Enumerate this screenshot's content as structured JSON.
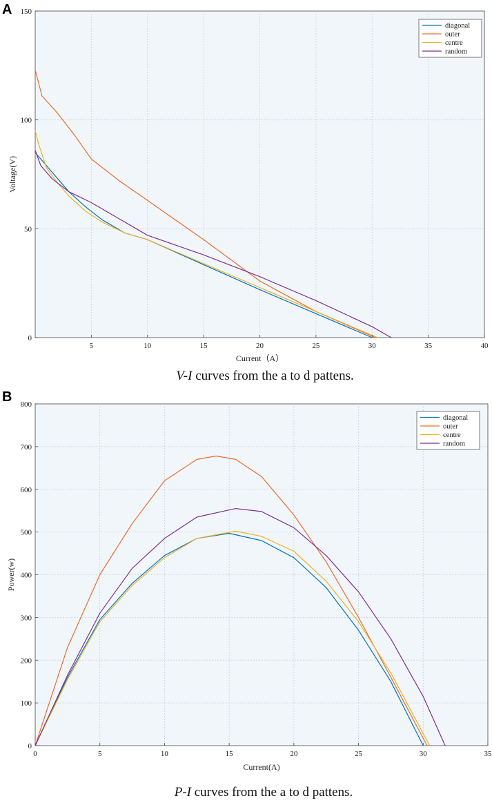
{
  "colors": {
    "diagonal": "#0072BD",
    "outer": "#EE6A2C",
    "centre": "#EDB120",
    "random": "#7E2F8E"
  },
  "chart_data": [
    {
      "panel": "A",
      "type": "line",
      "title": "",
      "xlabel": "Current（A）",
      "ylabel": "Voltage(V)",
      "xlim": [
        0,
        40
      ],
      "ylim": [
        0,
        150
      ],
      "xticks": [
        "5",
        "10",
        "15",
        "20",
        "25",
        "30",
        "35",
        "40"
      ],
      "xtick_values": [
        5,
        10,
        15,
        20,
        25,
        30,
        35,
        40
      ],
      "yticks": [
        "0",
        "50",
        "100",
        "150"
      ],
      "ytick_values": [
        0,
        50,
        100,
        150
      ],
      "grid": true,
      "legend_position": "top-right",
      "caption_italic": "V-I",
      "caption_rest": " curves from the a to d pattens.",
      "series": [
        {
          "name": "diagonal",
          "color_key": "diagonal",
          "x": [
            0,
            1,
            2,
            3,
            4.5,
            6,
            8,
            10,
            15,
            20,
            25,
            30
          ],
          "y": [
            85,
            79,
            73,
            67,
            60,
            54,
            48,
            45,
            33.5,
            22,
            11,
            0
          ]
        },
        {
          "name": "outer",
          "color_key": "outer",
          "x": [
            0,
            0.6,
            2,
            3.5,
            5,
            7.5,
            10,
            15,
            20,
            25,
            30.3
          ],
          "y": [
            123,
            111,
            103,
            93,
            82,
            72,
            63,
            45,
            26,
            12,
            0
          ]
        },
        {
          "name": "centre",
          "color_key": "centre",
          "x": [
            0,
            0.3,
            1,
            2,
            3,
            4.5,
            6,
            8,
            10,
            15,
            20,
            25,
            30.5
          ],
          "y": [
            95,
            89,
            78,
            71,
            65,
            58,
            53,
            48,
            45,
            34,
            23,
            12,
            0
          ]
        },
        {
          "name": "random",
          "color_key": "random",
          "x": [
            0,
            0.5,
            1.5,
            3,
            5,
            7,
            9,
            10,
            15,
            20,
            25,
            30,
            31.7
          ],
          "y": [
            86,
            79,
            73,
            67,
            62,
            56,
            50,
            47,
            38,
            28,
            17,
            5,
            0
          ]
        }
      ]
    },
    {
      "panel": "B",
      "type": "line",
      "title": "",
      "xlabel": "Current(A)",
      "ylabel": "Power(w)",
      "xlim": [
        0,
        35
      ],
      "ylim": [
        0,
        800
      ],
      "xticks": [
        "0",
        "5",
        "10",
        "15",
        "20",
        "25",
        "30",
        "35"
      ],
      "xtick_values": [
        0,
        5,
        10,
        15,
        20,
        25,
        30,
        35
      ],
      "yticks": [
        "0",
        "100",
        "200",
        "300",
        "400",
        "500",
        "600",
        "700",
        "800"
      ],
      "ytick_values": [
        0,
        100,
        200,
        300,
        400,
        500,
        600,
        700,
        800
      ],
      "grid": true,
      "legend_position": "top-right",
      "caption_italic": "P-I",
      "caption_rest": " curves from the a to d pattens.",
      "series": [
        {
          "name": "diagonal",
          "color_key": "diagonal",
          "x": [
            0,
            2.5,
            5,
            7.5,
            10,
            12.5,
            15,
            17.5,
            20,
            22.5,
            25,
            27.5,
            30
          ],
          "y": [
            0,
            160,
            295,
            380,
            445,
            485,
            497,
            480,
            440,
            370,
            270,
            150,
            0
          ]
        },
        {
          "name": "outer",
          "color_key": "outer",
          "x": [
            0,
            2.5,
            5,
            7.5,
            10,
            12.5,
            14,
            15.5,
            17.5,
            20,
            22.5,
            25,
            27.5,
            30.3
          ],
          "y": [
            0,
            230,
            400,
            520,
            620,
            670,
            678,
            670,
            630,
            540,
            430,
            300,
            160,
            0
          ]
        },
        {
          "name": "centre",
          "color_key": "centre",
          "x": [
            0,
            2.5,
            5,
            7.5,
            10,
            12.5,
            15.5,
            17.5,
            20,
            22.5,
            25,
            27.5,
            30.5
          ],
          "y": [
            0,
            155,
            290,
            375,
            440,
            485,
            502,
            490,
            455,
            385,
            290,
            170,
            0
          ]
        },
        {
          "name": "random",
          "color_key": "random",
          "x": [
            0,
            2.5,
            5,
            7.5,
            10,
            12.5,
            15.5,
            17.5,
            20,
            22.5,
            25,
            27.5,
            30,
            31.7
          ],
          "y": [
            0,
            165,
            310,
            415,
            485,
            535,
            555,
            548,
            510,
            445,
            360,
            250,
            115,
            0
          ]
        }
      ]
    }
  ]
}
